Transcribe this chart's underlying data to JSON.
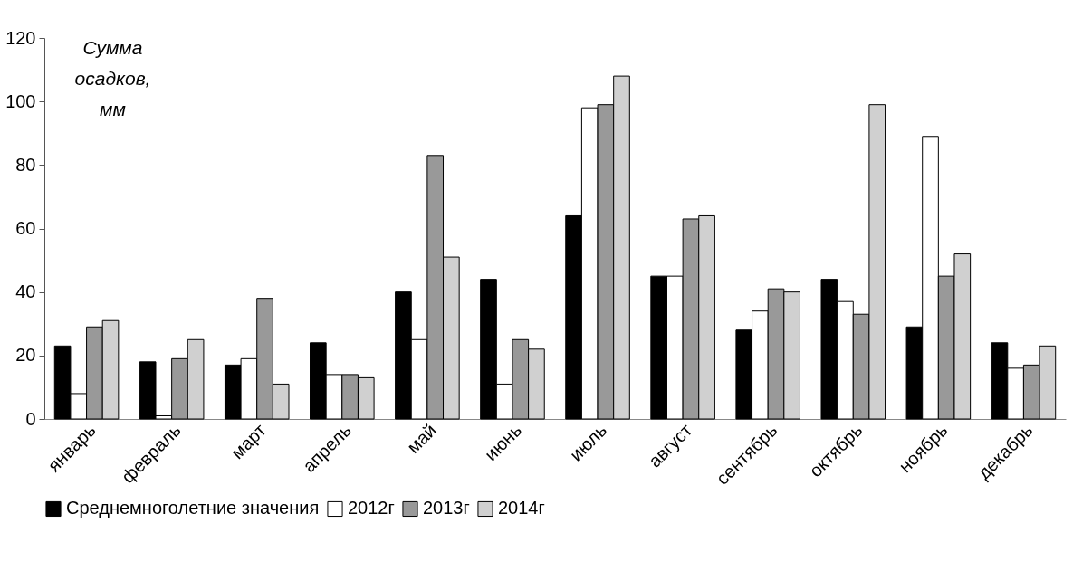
{
  "chart_data": {
    "type": "bar",
    "ylabel": "Сумма осадков, мм",
    "categories": [
      "январь",
      "февраль",
      "март",
      "апрель",
      "май",
      "июнь",
      "июль",
      "август",
      "сентябрь",
      "октябрь",
      "ноябрь",
      "декабрь"
    ],
    "series": [
      {
        "name": "Среднемноголетние значения",
        "color": "#000000",
        "values": [
          23,
          18,
          17,
          24,
          40,
          44,
          64,
          45,
          28,
          44,
          29,
          24
        ]
      },
      {
        "name": "2012г",
        "color": "#ffffff",
        "values": [
          8,
          1,
          19,
          14,
          25,
          11,
          98,
          45,
          34,
          37,
          89,
          16
        ]
      },
      {
        "name": "2013г",
        "color": "#999999",
        "values": [
          29,
          19,
          38,
          14,
          83,
          25,
          99,
          63,
          41,
          33,
          45,
          17
        ]
      },
      {
        "name": "2014г",
        "color": "#d0d0d0",
        "values": [
          31,
          25,
          11,
          13,
          51,
          22,
          108,
          64,
          40,
          99,
          52,
          23
        ]
      }
    ],
    "ylim": [
      0,
      120
    ],
    "yticks": [
      0,
      20,
      40,
      60,
      80,
      100,
      120
    ],
    "grid": false,
    "legend": "bottom"
  }
}
